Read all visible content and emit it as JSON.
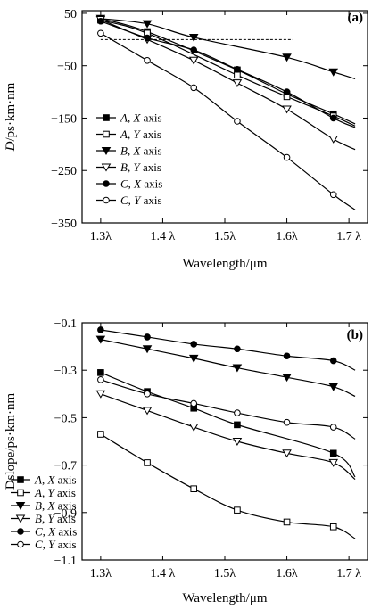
{
  "chart_data": [
    {
      "type": "line",
      "panel_label": "(a)",
      "xlabel": "Wavelength/μm",
      "ylabel": "D/ps·km·nm",
      "xlim": [
        1.27,
        1.73
      ],
      "ylim": [
        -350,
        55
      ],
      "x_ticks": [
        1.3,
        1.4,
        1.5,
        1.6,
        1.7
      ],
      "x_tick_labels": [
        "1.3λ",
        "1.4 λ",
        "1.5λ",
        "1.6λ",
        "1.7 λ"
      ],
      "y_ticks": [
        50,
        -50,
        -150,
        -250,
        -350
      ],
      "y_tick_labels": [
        "50",
        "−50",
        "−150",
        "−250",
        "−350"
      ],
      "reference_line_y": 0,
      "legend_position": "lower-left",
      "series": [
        {
          "name": "A, X axis",
          "marker": "filled-square",
          "x": [
            1.3,
            1.375,
            1.52,
            1.6,
            1.675
          ],
          "y": [
            40,
            15,
            -58,
            -104,
            -142
          ],
          "end": [
            1.71,
            -161
          ]
        },
        {
          "name": "A, Y axis",
          "marker": "open-square",
          "x": [
            1.3,
            1.375,
            1.52,
            1.6,
            1.675
          ],
          "y": [
            37,
            12,
            -68,
            -109,
            -146
          ],
          "end": [
            1.71,
            -165
          ]
        },
        {
          "name": "B, X axis",
          "marker": "filled-triangle-down",
          "x": [
            1.3,
            1.375,
            1.45,
            1.6,
            1.675
          ],
          "y": [
            40,
            30,
            4,
            -34,
            -62
          ],
          "end": [
            1.71,
            -75
          ]
        },
        {
          "name": "B, Y axis",
          "marker": "open-triangle-down",
          "x": [
            1.3,
            1.375,
            1.45,
            1.52,
            1.6,
            1.675
          ],
          "y": [
            38,
            0,
            -40,
            -83,
            -133,
            -190
          ],
          "end": [
            1.71,
            -210
          ]
        },
        {
          "name": "C, X axis",
          "marker": "filled-circle",
          "x": [
            1.3,
            1.375,
            1.45,
            1.52,
            1.6,
            1.675
          ],
          "y": [
            35,
            3,
            -20,
            -57,
            -100,
            -150
          ],
          "end": [
            1.71,
            -168
          ]
        },
        {
          "name": "C, Y axis",
          "marker": "open-circle",
          "x": [
            1.3,
            1.375,
            1.45,
            1.52,
            1.6,
            1.675
          ],
          "y": [
            12,
            -40,
            -92,
            -156,
            -225,
            -296
          ],
          "end": [
            1.71,
            -325
          ]
        }
      ]
    },
    {
      "type": "line",
      "panel_label": "(b)",
      "xlabel": "Wavelength/μm",
      "ylabel": "Dslope/ps·km·nm",
      "xlim": [
        1.27,
        1.73
      ],
      "ylim": [
        -1.1,
        -0.1
      ],
      "x_ticks": [
        1.3,
        1.4,
        1.5,
        1.6,
        1.7
      ],
      "x_tick_labels": [
        "1.3λ",
        "1.4 λ",
        "1.5λ",
        "1.6λ",
        "1.7 λ"
      ],
      "y_ticks": [
        -0.1,
        -0.3,
        -0.5,
        -0.7,
        -0.9,
        -1.1
      ],
      "y_tick_labels": [
        "−0.1",
        "−0.3",
        "−0.5",
        "−0.7",
        "−0.9",
        "−1.1"
      ],
      "legend_position": "lower-left",
      "series": [
        {
          "name": "A, X axis",
          "marker": "filled-square",
          "x": [
            1.3,
            1.375,
            1.45,
            1.52,
            1.675
          ],
          "y": [
            -0.31,
            -0.39,
            -0.46,
            -0.53,
            -0.65
          ],
          "end": [
            1.71,
            -0.75
          ]
        },
        {
          "name": "A, Y axis",
          "marker": "open-square",
          "x": [
            1.3,
            1.375,
            1.45,
            1.52,
            1.6,
            1.675
          ],
          "y": [
            -0.57,
            -0.69,
            -0.8,
            -0.89,
            -0.94,
            -0.96
          ],
          "end": [
            1.71,
            -1.01
          ]
        },
        {
          "name": "B, X axis",
          "marker": "filled-triangle-down",
          "x": [
            1.3,
            1.375,
            1.45,
            1.52,
            1.6,
            1.675
          ],
          "y": [
            -0.17,
            -0.21,
            -0.25,
            -0.29,
            -0.33,
            -0.37
          ],
          "end": [
            1.71,
            -0.41
          ]
        },
        {
          "name": "B, Y axis",
          "marker": "open-triangle-down",
          "x": [
            1.3,
            1.375,
            1.45,
            1.52,
            1.6,
            1.675
          ],
          "y": [
            -0.4,
            -0.47,
            -0.54,
            -0.6,
            -0.65,
            -0.69
          ],
          "end": [
            1.71,
            -0.76
          ]
        },
        {
          "name": "C, X axis",
          "marker": "filled-circle",
          "x": [
            1.3,
            1.375,
            1.45,
            1.52,
            1.6,
            1.675
          ],
          "y": [
            -0.13,
            -0.16,
            -0.19,
            -0.21,
            -0.24,
            -0.26
          ],
          "end": [
            1.71,
            -0.3
          ]
        },
        {
          "name": "C, Y axis",
          "marker": "open-circle",
          "x": [
            1.3,
            1.375,
            1.45,
            1.52,
            1.6,
            1.675
          ],
          "y": [
            -0.34,
            -0.4,
            -0.44,
            -0.48,
            -0.52,
            -0.54
          ],
          "end": [
            1.71,
            -0.59
          ]
        }
      ]
    }
  ]
}
